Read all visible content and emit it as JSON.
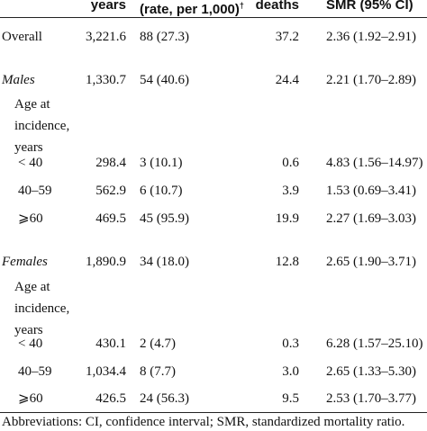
{
  "header": {
    "col1": "years",
    "col2": "(rate, per 1,000)",
    "col2_sup": "†",
    "col3": "deaths",
    "col4": "SMR (95% CI)"
  },
  "rows": {
    "overall": {
      "label": "Overall",
      "person_years": "3,221.6",
      "observed": "88 (27.3)",
      "expected": "37.2",
      "smr": "2.36 (1.92–2.91)"
    },
    "males": {
      "label": "Males",
      "person_years": "1,330.7",
      "observed": "54 (40.6)",
      "expected": "24.4",
      "smr": "2.21 (1.70–2.89)"
    },
    "males_age_label_1": "Age at",
    "males_age_label_2": "incidence,",
    "males_age_label_3": "years",
    "males_lt40": {
      "label": "< 40",
      "person_years": "298.4",
      "observed": "3 (10.1)",
      "expected": "0.6",
      "smr": "4.83 (1.56–14.97)"
    },
    "males_40_59": {
      "label": "40–59",
      "person_years": "562.9",
      "observed": "6 (10.7)",
      "expected": "3.9",
      "smr": "1.53 (0.69–3.41)"
    },
    "males_ge60": {
      "label": "⩾60",
      "person_years": "469.5",
      "observed": "45 (95.9)",
      "expected": "19.9",
      "smr": "2.27 (1.69–3.03)"
    },
    "females": {
      "label": "Females",
      "person_years": "1,890.9",
      "observed": "34 (18.0)",
      "expected": "12.8",
      "smr": "2.65 (1.90–3.71)"
    },
    "females_age_label_1": "Age at",
    "females_age_label_2": "incidence,",
    "females_age_label_3": "years",
    "females_lt40": {
      "label": "< 40",
      "person_years": "430.1",
      "observed": "2 (4.7)",
      "expected": "0.3",
      "smr": "6.28 (1.57–25.10)"
    },
    "females_40_59": {
      "label": "40–59",
      "person_years": "1,034.4",
      "observed": "8 (7.7)",
      "expected": "3.0",
      "smr": "2.65 (1.33–5.30)"
    },
    "females_ge60": {
      "label": "⩾60",
      "person_years": "426.5",
      "observed": "24 (56.3)",
      "expected": "9.5",
      "smr": "2.53 (1.70–3.77)"
    }
  },
  "footer": "Abbreviations: CI, confidence interval; SMR, standardized mortality ratio."
}
